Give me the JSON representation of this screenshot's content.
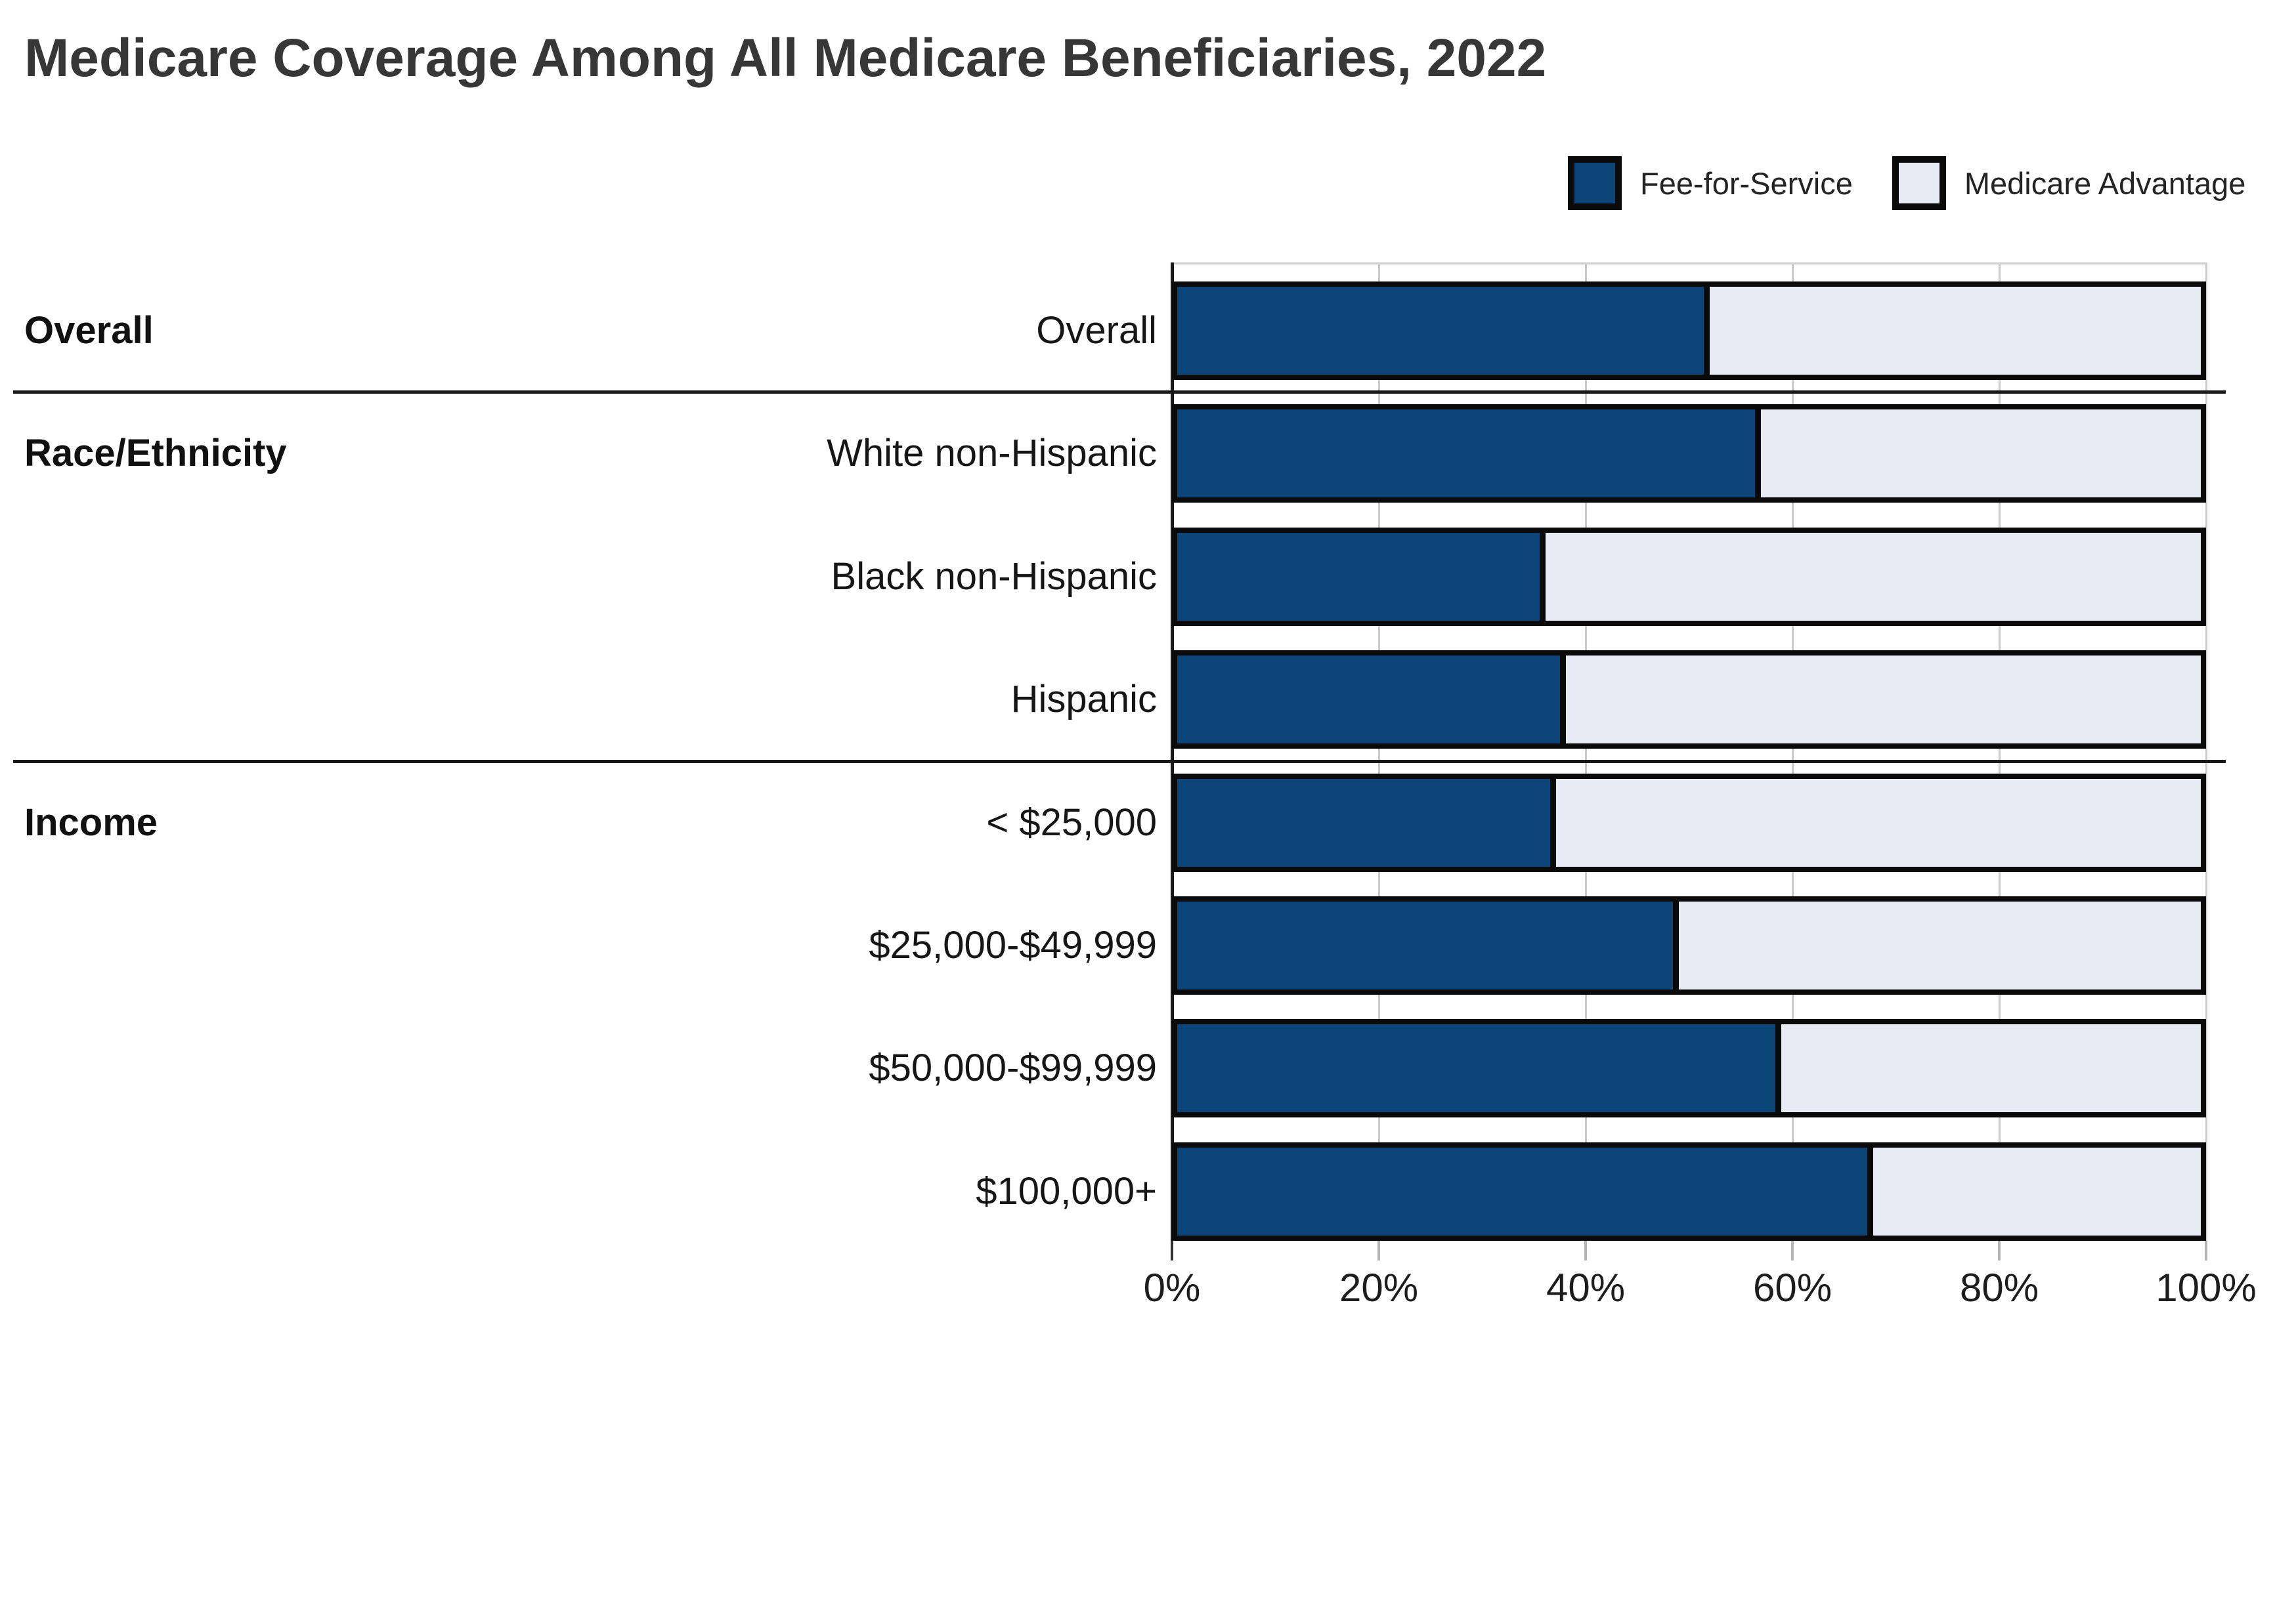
{
  "title": "Medicare Coverage Among All Medicare Beneficiaries, 2022",
  "legend": [
    {
      "label": "Fee-for-Service",
      "color": "#0b4577"
    },
    {
      "label": "Medicare Advantage",
      "color": "#e8ebf3"
    }
  ],
  "colors": {
    "fee_for_service_fill": "#0b4577",
    "medicare_advantage_fill": "#e8ebf3",
    "bar_outline": "#0a0a0a",
    "gridline": "#cbcbcb",
    "title_text": "#373737"
  },
  "chart_data": {
    "type": "bar",
    "orientation": "horizontal-stacked",
    "title": "Medicare Coverage Among All Medicare Beneficiaries, 2022",
    "xlabel": "",
    "ylabel": "",
    "xlim": [
      0,
      100
    ],
    "x_tick_values": [
      0,
      20,
      40,
      60,
      80,
      100
    ],
    "x_ticks": [
      "0%",
      "20%",
      "40%",
      "60%",
      "80%",
      "100%"
    ],
    "grid": true,
    "legend_position": "top-right",
    "groups": [
      {
        "label": "Overall",
        "rows": [
          "Overall"
        ]
      },
      {
        "label": "Race/Ethnicity",
        "rows": [
          "White non-Hispanic",
          "Black non-Hispanic",
          "Hispanic"
        ]
      },
      {
        "label": "Income",
        "rows": [
          "< $25,000",
          "$25,000-$49,999",
          "$50,000-$99,999",
          "$100,000+"
        ]
      }
    ],
    "categories": [
      "Overall",
      "White non-Hispanic",
      "Black non-Hispanic",
      "Hispanic",
      "< $25,000",
      "$25,000-$49,999",
      "$50,000-$99,999",
      "$100,000+"
    ],
    "series": [
      {
        "name": "Fee-for-Service",
        "color": "#0b4577",
        "values": [
          52,
          57,
          36,
          38,
          37,
          49,
          59,
          68
        ]
      },
      {
        "name": "Medicare Advantage",
        "color": "#e8ebf3",
        "values": [
          48,
          43,
          64,
          62,
          63,
          51,
          41,
          32
        ]
      }
    ]
  }
}
